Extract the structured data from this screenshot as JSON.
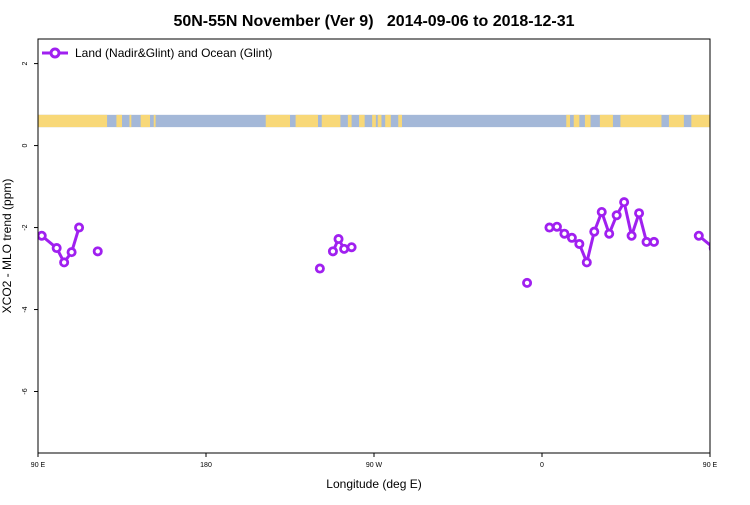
{
  "chart_data": {
    "type": "line",
    "title": "50N-55N November (Ver 9)   2014-09-06 to 2018-12-31",
    "xlabel": "Longitude (deg E)",
    "ylabel": "XCO2 - MLO trend (ppm)",
    "xlim": [
      90,
      450
    ],
    "ylim": [
      -7.5,
      2.6
    ],
    "x_ticks": [
      {
        "value": 90,
        "label": "90 E"
      },
      {
        "value": 180,
        "label": "180"
      },
      {
        "value": 270,
        "label": "90 W"
      },
      {
        "value": 360,
        "label": "0"
      },
      {
        "value": 450,
        "label": "90 E"
      },
      {
        "value": 540,
        "label": "180"
      }
    ],
    "y_ticks": [
      2,
      0,
      -2,
      -4,
      -6
    ],
    "legend_position": "top-left",
    "colors": {
      "series": "#a020f0",
      "land": "#f8d878",
      "ocean": "#a4b8d8"
    },
    "land_ocean_band": {
      "y_range": [
        0.45,
        0.75
      ],
      "land_segments": [
        [
          90,
          127
        ],
        [
          132,
          135
        ],
        [
          139,
          140
        ],
        [
          145,
          150
        ],
        [
          152,
          153
        ],
        [
          212,
          225
        ],
        [
          228,
          240
        ],
        [
          242,
          252
        ],
        [
          256,
          258
        ],
        [
          262,
          265
        ],
        [
          269,
          271
        ],
        [
          272,
          274
        ],
        [
          276,
          279
        ],
        [
          283,
          285
        ],
        [
          373,
          375
        ],
        [
          377,
          380
        ],
        [
          383,
          386
        ],
        [
          391,
          398
        ],
        [
          402,
          424
        ],
        [
          428,
          436
        ],
        [
          440,
          450
        ]
      ]
    },
    "series": [
      {
        "name": "Land (Nadir&Glint) and Ocean (Glint)",
        "segments": [
          [
            [
              92,
              -2.2
            ],
            [
              100,
              -2.5
            ],
            [
              104,
              -2.85
            ],
            [
              108,
              -2.6
            ],
            [
              112,
              -2.0
            ]
          ],
          [
            [
              122,
              -2.58
            ]
          ],
          [
            [
              241,
              -3.0
            ]
          ],
          [
            [
              248,
              -2.58
            ],
            [
              251,
              -2.28
            ],
            [
              254,
              -2.52
            ],
            [
              258,
              -2.48
            ]
          ],
          [
            [
              352,
              -3.35
            ]
          ],
          [
            [
              364,
              -2.0
            ],
            [
              368,
              -1.98
            ],
            [
              372,
              -2.15
            ],
            [
              376,
              -2.25
            ],
            [
              380,
              -2.4
            ],
            [
              384,
              -2.85
            ],
            [
              388,
              -2.1
            ],
            [
              392,
              -1.62
            ],
            [
              396,
              -2.15
            ],
            [
              400,
              -1.7
            ],
            [
              404,
              -1.38
            ],
            [
              408,
              -2.2
            ],
            [
              412,
              -1.65
            ],
            [
              416,
              -2.35
            ],
            [
              420,
              -2.35
            ]
          ],
          [
            [
              444,
              -2.2
            ],
            [
              452,
              -2.5
            ],
            [
              456,
              -2.85
            ],
            [
              460,
              -2.6
            ],
            [
              464,
              -2.0
            ]
          ],
          [
            [
              474,
              -2.58
            ]
          ]
        ]
      }
    ]
  }
}
